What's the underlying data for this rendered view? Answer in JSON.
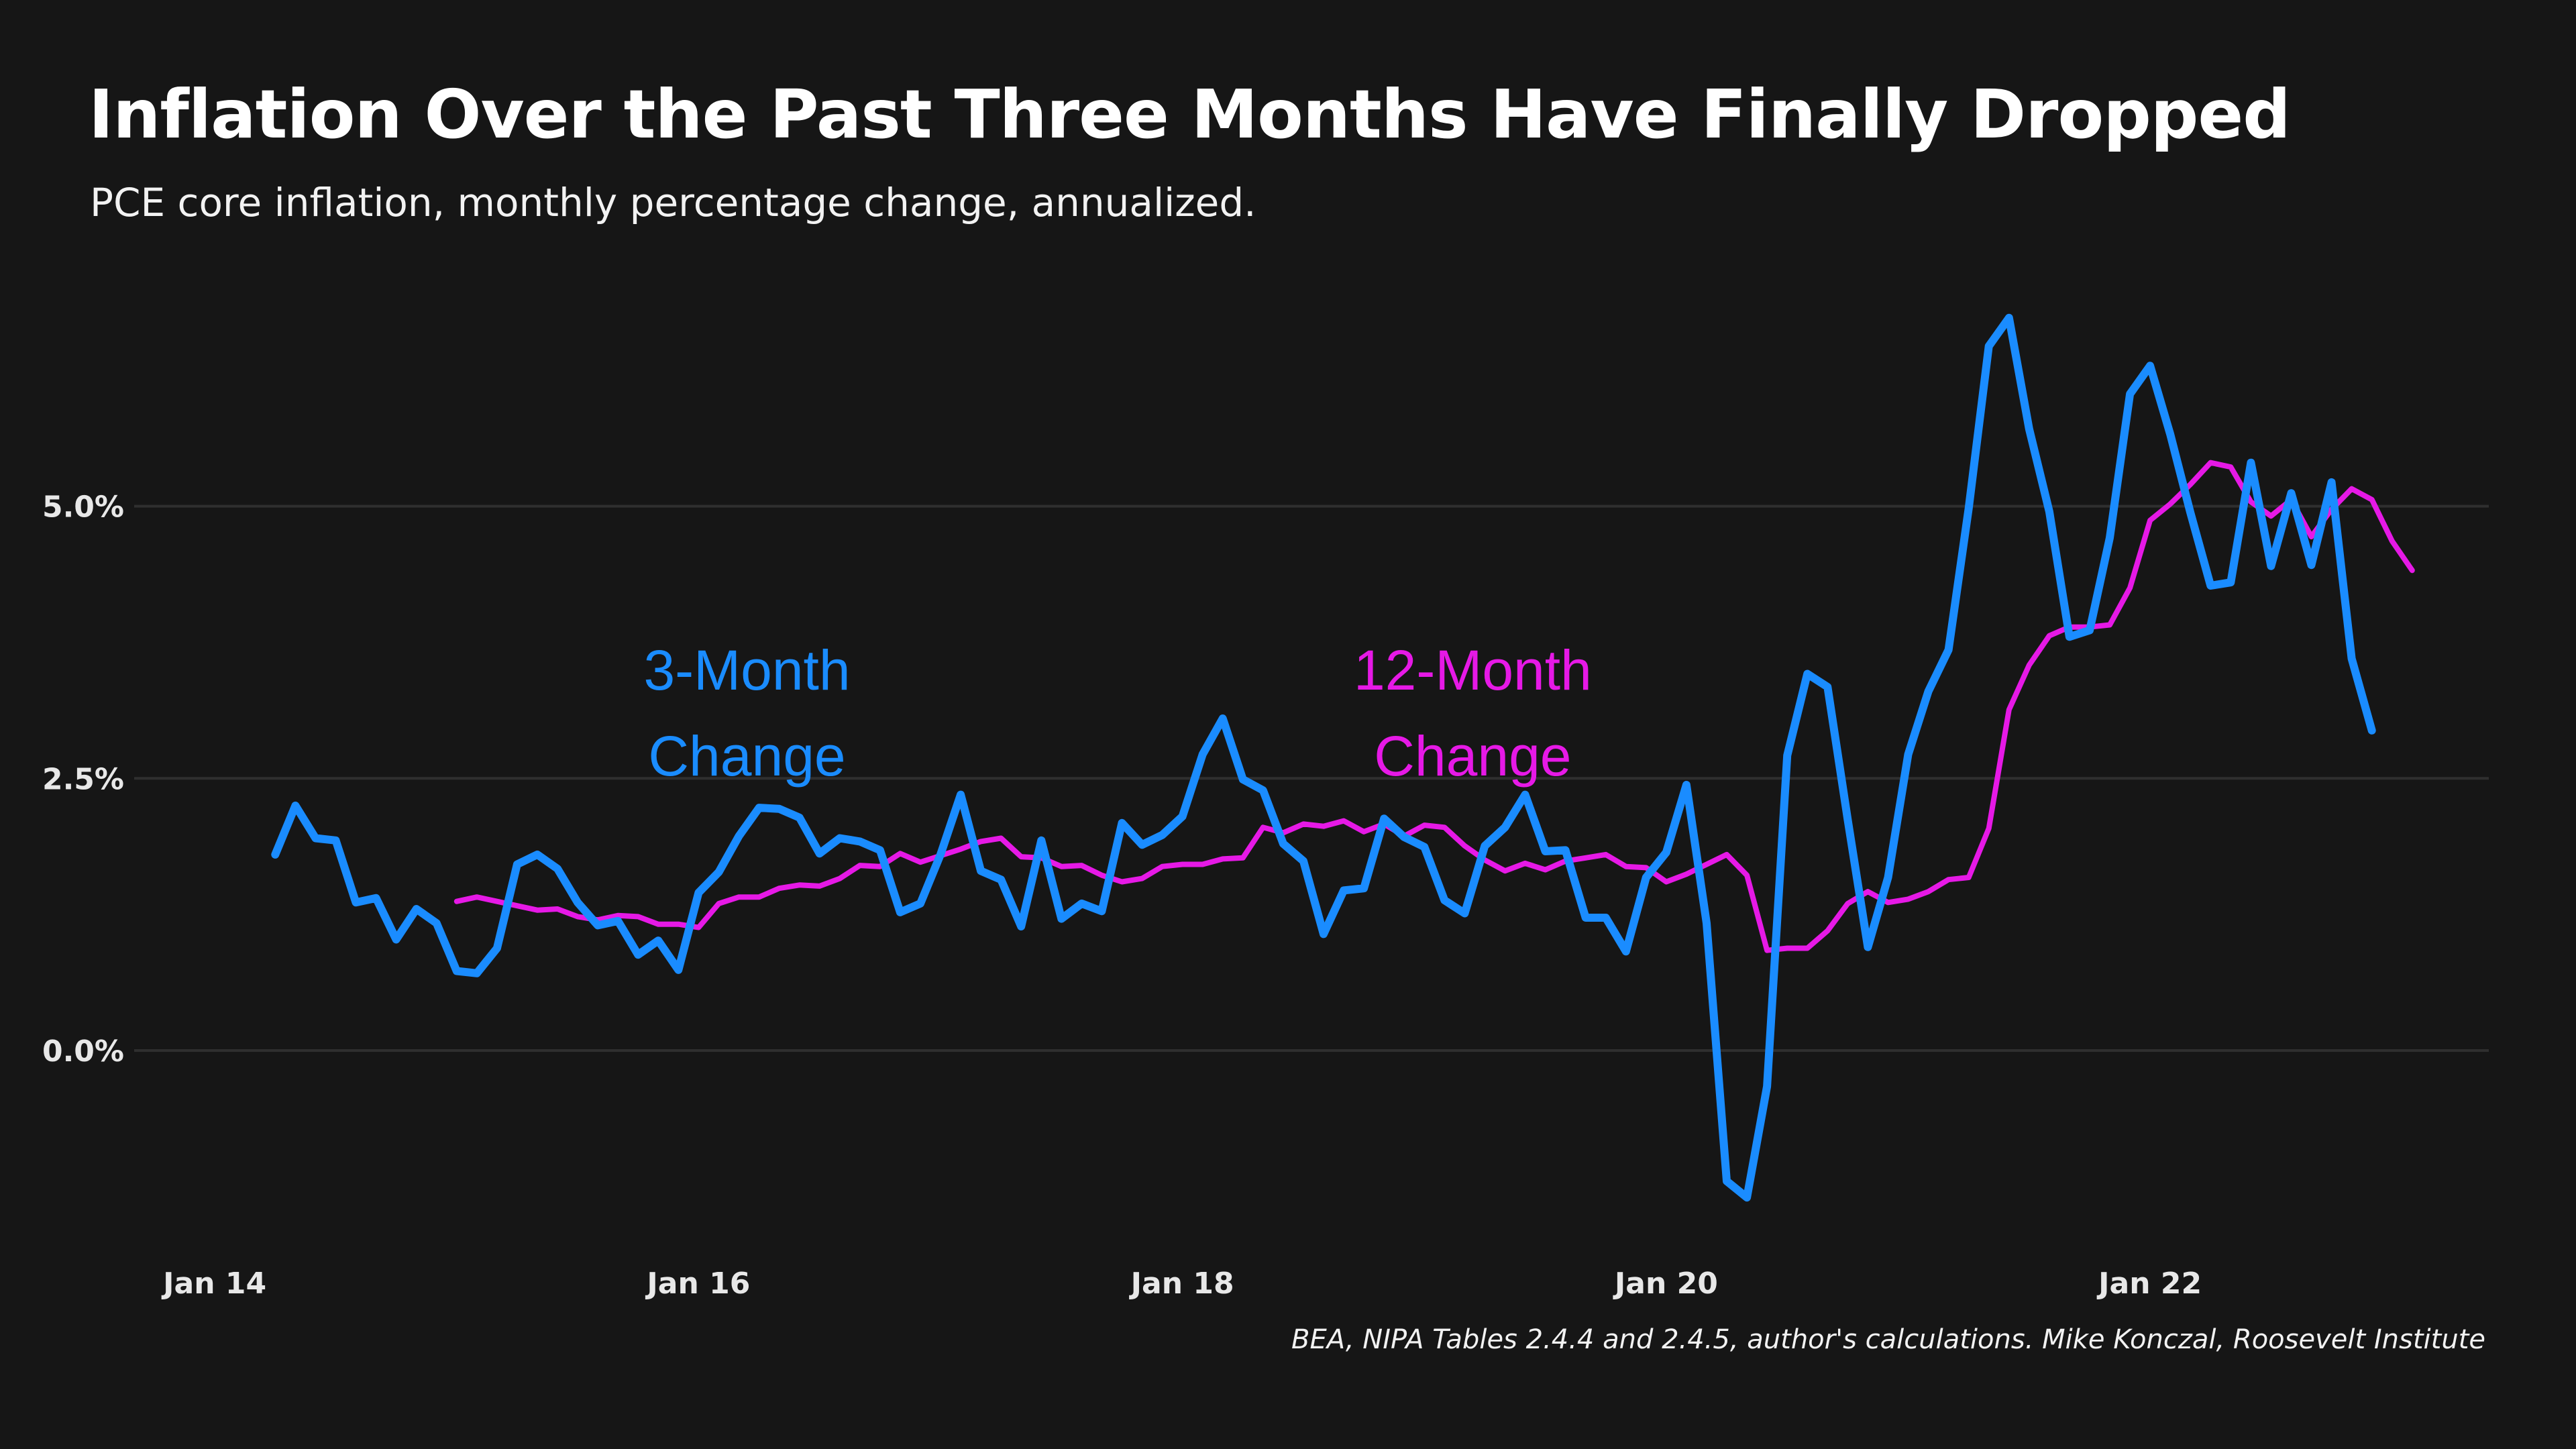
{
  "chart_data": {
    "type": "line",
    "title": "Inflation Over the Past Three Months Have Finally Dropped",
    "subtitle": "PCE core inflation, monthly percentage change, annualized.",
    "source": "BEA, NIPA Tables 2.4.4 and 2.4.5, author's calculations. Mike Konczal, Roosevelt Institute",
    "xlabel": "",
    "ylabel": "",
    "x_ticks": [
      {
        "value": 2014.0,
        "label": "Jan 14"
      },
      {
        "value": 2016.0,
        "label": "Jan 16"
      },
      {
        "value": 2018.0,
        "label": "Jan 18"
      },
      {
        "value": 2020.0,
        "label": "Jan 20"
      },
      {
        "value": 2022.0,
        "label": "Jan 22"
      }
    ],
    "y_ticks": [
      {
        "value": 0.0,
        "label": "0.0%"
      },
      {
        "value": 2.5,
        "label": "2.5%"
      },
      {
        "value": 5.0,
        "label": "5.0%"
      }
    ],
    "xlim": [
      2013.75,
      2023.4
    ],
    "ylim": [
      -1.75,
      7.0
    ],
    "grid": true,
    "colors": {
      "background": "#161616",
      "grid": "#2f2f2f",
      "three_month": "#1a8cff",
      "twelve_month": "#e619e6"
    },
    "annotations": [
      {
        "series": "three_month",
        "lines": [
          "3-Month",
          "Change"
        ],
        "x": 2016.2,
        "y": 3.5
      },
      {
        "series": "twelve_month",
        "lines": [
          "12-Month",
          "Change"
        ],
        "x": 2019.2,
        "y": 3.5
      }
    ],
    "series": [
      {
        "key": "three_month",
        "start": 2014.25,
        "values": [
          1.8,
          2.25,
          1.95,
          1.93,
          1.36,
          1.4,
          1.02,
          1.3,
          1.17,
          0.73,
          0.71,
          0.94,
          1.71,
          1.8,
          1.67,
          1.36,
          1.15,
          1.19,
          0.88,
          1.01,
          0.74,
          1.45,
          1.64,
          1.97,
          2.23,
          2.22,
          2.14,
          1.81,
          1.95,
          1.92,
          1.84,
          1.27,
          1.35,
          1.8,
          2.35,
          1.65,
          1.57,
          1.14,
          1.93,
          1.21,
          1.35,
          1.28,
          2.09,
          1.89,
          1.98,
          2.15,
          2.72,
          3.05,
          2.49,
          2.39,
          1.9,
          1.74,
          1.07,
          1.47,
          1.49,
          2.13,
          1.96,
          1.87,
          1.38,
          1.26,
          1.88,
          2.05,
          2.35,
          1.83,
          1.84,
          1.22,
          1.22,
          0.91,
          1.59,
          1.82,
          2.44,
          1.17,
          -1.2,
          -1.35,
          -0.33,
          2.71,
          3.46,
          3.34,
          2.12,
          0.95,
          1.59,
          2.72,
          3.3,
          3.68,
          4.98,
          6.47,
          6.73,
          5.71,
          4.95,
          3.8,
          3.86,
          4.71,
          6.03,
          6.29,
          5.66,
          4.94,
          4.27,
          4.3,
          5.4,
          4.45,
          5.12,
          4.46,
          5.22,
          3.6,
          2.94
        ]
      },
      {
        "key": "twelve_month",
        "start": 2015.0,
        "values": [
          1.37,
          1.41,
          1.37,
          1.33,
          1.29,
          1.3,
          1.23,
          1.2,
          1.24,
          1.23,
          1.16,
          1.16,
          1.13,
          1.35,
          1.41,
          1.41,
          1.49,
          1.52,
          1.51,
          1.58,
          1.7,
          1.69,
          1.81,
          1.73,
          1.79,
          1.85,
          1.92,
          1.95,
          1.78,
          1.77,
          1.69,
          1.7,
          1.61,
          1.55,
          1.58,
          1.69,
          1.71,
          1.71,
          1.76,
          1.77,
          2.05,
          2.0,
          2.08,
          2.06,
          2.11,
          2.01,
          2.08,
          1.97,
          2.07,
          2.05,
          1.88,
          1.75,
          1.65,
          1.72,
          1.66,
          1.74,
          1.77,
          1.8,
          1.69,
          1.68,
          1.55,
          1.62,
          1.71,
          1.8,
          1.61,
          0.92,
          0.94,
          0.94,
          1.1,
          1.35,
          1.46,
          1.36,
          1.39,
          1.46,
          1.57,
          1.59,
          2.04,
          3.13,
          3.54,
          3.81,
          3.89,
          3.89,
          3.91,
          4.25,
          4.87,
          5.02,
          5.2,
          5.4,
          5.36,
          5.04,
          4.91,
          5.06,
          4.72,
          4.97,
          5.16,
          5.06,
          4.68,
          4.41
        ]
      }
    ]
  }
}
